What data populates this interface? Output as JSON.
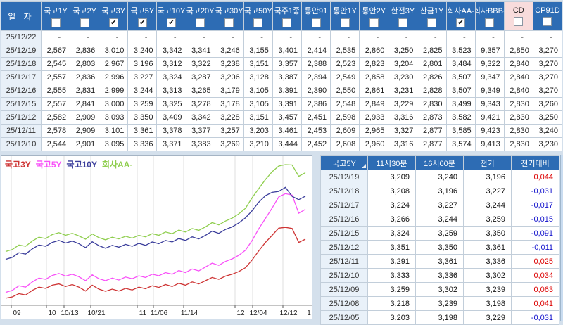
{
  "colors": {
    "header_bg": "#2D6CB4",
    "cd_highlight_bg": "#F8DCDC",
    "up": "#DC0000",
    "down": "#1414CC",
    "date_cell_bg": "#E8F0F8"
  },
  "top_table": {
    "date_header": "일  자",
    "check_glyph": "✔",
    "columns": [
      {
        "label": "국고1Y",
        "checked": false,
        "highlight": false
      },
      {
        "label": "국고2Y",
        "checked": false,
        "highlight": false
      },
      {
        "label": "국고3Y",
        "checked": true,
        "highlight": false
      },
      {
        "label": "국고5Y",
        "checked": true,
        "highlight": false
      },
      {
        "label": "국고10Y",
        "checked": true,
        "highlight": false
      },
      {
        "label": "국고20Y",
        "checked": false,
        "highlight": false
      },
      {
        "label": "국고30Y",
        "checked": false,
        "highlight": false
      },
      {
        "label": "국고50Y",
        "checked": false,
        "highlight": false
      },
      {
        "label": "국주1종",
        "checked": false,
        "highlight": false
      },
      {
        "label": "통안91",
        "checked": false,
        "highlight": false
      },
      {
        "label": "통안1Y",
        "checked": false,
        "highlight": false
      },
      {
        "label": "통안2Y",
        "checked": false,
        "highlight": false
      },
      {
        "label": "한전3Y",
        "checked": false,
        "highlight": false
      },
      {
        "label": "산금1Y",
        "checked": false,
        "highlight": false
      },
      {
        "label": "회사AA-",
        "checked": true,
        "highlight": false
      },
      {
        "label": "회사BBB-",
        "checked": false,
        "highlight": false
      },
      {
        "label": "CD",
        "checked": false,
        "highlight": true
      },
      {
        "label": "CP91D",
        "checked": false,
        "highlight": false
      }
    ],
    "rows": [
      {
        "date": "25/12/22",
        "values": [
          "-",
          "-",
          "-",
          "-",
          "-",
          "-",
          "-",
          "-",
          "-",
          "-",
          "-",
          "-",
          "-",
          "-",
          "-",
          "-",
          "-",
          "-"
        ]
      },
      {
        "date": "25/12/19",
        "values": [
          "2,567",
          "2,836",
          "3,010",
          "3,240",
          "3,342",
          "3,341",
          "3,246",
          "3,155",
          "3,401",
          "2,414",
          "2,535",
          "2,860",
          "3,250",
          "2,825",
          "3,523",
          "9,357",
          "2,850",
          "3,270"
        ]
      },
      {
        "date": "25/12/18",
        "values": [
          "2,545",
          "2,803",
          "2,967",
          "3,196",
          "3,312",
          "3,322",
          "3,238",
          "3,151",
          "3,357",
          "2,388",
          "2,523",
          "2,823",
          "3,204",
          "2,801",
          "3,484",
          "9,322",
          "2,840",
          "3,270"
        ]
      },
      {
        "date": "25/12/17",
        "values": [
          "2,557",
          "2,836",
          "2,996",
          "3,227",
          "3,324",
          "3,287",
          "3,206",
          "3,128",
          "3,387",
          "2,394",
          "2,549",
          "2,858",
          "3,230",
          "2,826",
          "3,507",
          "9,347",
          "2,840",
          "3,270"
        ]
      },
      {
        "date": "25/12/16",
        "values": [
          "2,555",
          "2,831",
          "2,999",
          "3,244",
          "3,313",
          "3,265",
          "3,179",
          "3,105",
          "3,391",
          "2,390",
          "2,550",
          "2,861",
          "3,231",
          "2,828",
          "3,507",
          "9,349",
          "2,840",
          "3,270"
        ]
      },
      {
        "date": "25/12/15",
        "values": [
          "2,557",
          "2,841",
          "3,000",
          "3,259",
          "3,325",
          "3,278",
          "3,178",
          "3,105",
          "3,391",
          "2,386",
          "2,548",
          "2,849",
          "3,229",
          "2,830",
          "3,499",
          "9,343",
          "2,830",
          "3,260"
        ]
      },
      {
        "date": "25/12/12",
        "values": [
          "2,582",
          "2,909",
          "3,093",
          "3,350",
          "3,409",
          "3,342",
          "3,228",
          "3,151",
          "3,457",
          "2,451",
          "2,598",
          "2,933",
          "3,316",
          "2,873",
          "3,582",
          "9,421",
          "2,830",
          "3,250"
        ]
      },
      {
        "date": "25/12/11",
        "values": [
          "2,578",
          "2,909",
          "3,101",
          "3,361",
          "3,378",
          "3,377",
          "3,257",
          "3,203",
          "3,461",
          "2,453",
          "2,609",
          "2,965",
          "3,327",
          "2,877",
          "3,585",
          "9,423",
          "2,830",
          "3,240"
        ]
      },
      {
        "date": "25/12/10",
        "values": [
          "2,544",
          "2,901",
          "3,095",
          "3,336",
          "3,371",
          "3,383",
          "3,269",
          "3,210",
          "3,444",
          "2,452",
          "2,608",
          "2,960",
          "3,316",
          "2,877",
          "3,574",
          "9,413",
          "2,830",
          "3,230"
        ]
      }
    ]
  },
  "quote_table": {
    "title": "국고5Y",
    "columns": [
      "11시30분",
      "16시00분",
      "전기",
      "전기대비"
    ],
    "rows": [
      {
        "date": "25/12/19",
        "v1": "3,209",
        "v2": "3,240",
        "v3": "3,196",
        "diff": "0,044",
        "dir": "up"
      },
      {
        "date": "25/12/18",
        "v1": "3,208",
        "v2": "3,196",
        "v3": "3,227",
        "diff": "-0,031",
        "dir": "down"
      },
      {
        "date": "25/12/17",
        "v1": "3,224",
        "v2": "3,227",
        "v3": "3,244",
        "diff": "-0,017",
        "dir": "down"
      },
      {
        "date": "25/12/16",
        "v1": "3,266",
        "v2": "3,244",
        "v3": "3,259",
        "diff": "-0,015",
        "dir": "down"
      },
      {
        "date": "25/12/15",
        "v1": "3,324",
        "v2": "3,259",
        "v3": "3,350",
        "diff": "-0,091",
        "dir": "down"
      },
      {
        "date": "25/12/12",
        "v1": "3,351",
        "v2": "3,350",
        "v3": "3,361",
        "diff": "-0,011",
        "dir": "down"
      },
      {
        "date": "25/12/11",
        "v1": "3,291",
        "v2": "3,361",
        "v3": "3,336",
        "diff": "0,025",
        "dir": "up"
      },
      {
        "date": "25/12/10",
        "v1": "3,333",
        "v2": "3,336",
        "v3": "3,302",
        "diff": "0,034",
        "dir": "up"
      },
      {
        "date": "25/12/09",
        "v1": "3,259",
        "v2": "3,302",
        "v3": "3,239",
        "diff": "0,063",
        "dir": "up"
      },
      {
        "date": "25/12/08",
        "v1": "3,218",
        "v2": "3,239",
        "v3": "3,198",
        "diff": "0,041",
        "dir": "up"
      },
      {
        "date": "25/12/05",
        "v1": "3,203",
        "v2": "3,198",
        "v3": "3,229",
        "diff": "-0,031",
        "dir": "down"
      }
    ]
  },
  "chart_data": {
    "type": "line",
    "title": "",
    "xlabel": "",
    "ylabel": "",
    "grid": "vertical",
    "legend_position": "top-left-inside",
    "ylim": [
      2.5,
      3.65
    ],
    "x_ticks": [
      {
        "label": "09",
        "px": 14
      },
      {
        "label": "10",
        "px": 64
      },
      {
        "label": "10/13",
        "px": 89
      },
      {
        "label": "10/21",
        "px": 127
      },
      {
        "label": "11",
        "px": 193
      },
      {
        "label": "11/06",
        "px": 216
      },
      {
        "label": "11/14",
        "px": 259
      },
      {
        "label": "12",
        "px": 332
      },
      {
        "label": "12/04",
        "px": 357
      },
      {
        "label": "12/12",
        "px": 400
      },
      {
        "label": "1",
        "px": 446
      }
    ],
    "x_range_dates": [
      "25/09/08",
      "25/12/19"
    ],
    "series": [
      {
        "name": "국고3Y",
        "color": "#CE3434",
        "values": [
          2.555,
          2.565,
          2.59,
          2.58,
          2.615,
          2.64,
          2.63,
          2.655,
          2.665,
          2.645,
          2.66,
          2.64,
          2.61,
          2.655,
          2.625,
          2.608,
          2.625,
          2.61,
          2.63,
          2.618,
          2.64,
          2.628,
          2.65,
          2.638,
          2.66,
          2.645,
          2.67,
          2.655,
          2.68,
          2.665,
          2.69,
          2.715,
          2.7,
          2.725,
          2.74,
          2.76,
          2.79,
          2.85,
          2.92,
          2.985,
          3.04,
          3.095,
          3.101,
          3.093,
          2.985,
          3.01
        ]
      },
      {
        "name": "국고5Y",
        "color": "#F851F8",
        "values": [
          2.6,
          2.615,
          2.65,
          2.64,
          2.68,
          2.71,
          2.7,
          2.73,
          2.745,
          2.725,
          2.74,
          2.72,
          2.69,
          2.735,
          2.705,
          2.69,
          2.71,
          2.695,
          2.718,
          2.705,
          2.728,
          2.715,
          2.74,
          2.728,
          2.752,
          2.74,
          2.768,
          2.752,
          2.78,
          2.765,
          2.795,
          2.825,
          2.808,
          2.838,
          2.858,
          2.885,
          2.925,
          3.0,
          3.09,
          3.17,
          3.25,
          3.336,
          3.361,
          3.35,
          3.21,
          3.24
        ]
      },
      {
        "name": "국고10Y",
        "color": "#3A3D9B",
        "values": [
          2.855,
          2.87,
          2.905,
          2.895,
          2.935,
          2.965,
          2.955,
          2.985,
          3.0,
          2.98,
          2.995,
          2.975,
          2.945,
          2.99,
          2.96,
          2.94,
          2.962,
          2.948,
          2.97,
          2.955,
          2.978,
          2.962,
          2.988,
          2.975,
          3.0,
          2.988,
          3.015,
          3.0,
          3.028,
          3.012,
          3.04,
          3.072,
          3.055,
          3.085,
          3.105,
          3.135,
          3.175,
          3.23,
          3.295,
          3.345,
          3.371,
          3.378,
          3.409,
          3.34,
          3.315,
          3.342
        ]
      },
      {
        "name": "회사AA-",
        "color": "#8FCE4E",
        "values": [
          2.915,
          2.93,
          2.965,
          2.955,
          2.995,
          3.025,
          3.015,
          3.045,
          3.06,
          3.04,
          3.055,
          3.035,
          3.01,
          3.05,
          3.022,
          3.005,
          3.025,
          3.012,
          3.032,
          3.018,
          3.04,
          3.028,
          3.052,
          3.04,
          3.065,
          3.052,
          3.08,
          3.065,
          3.092,
          3.078,
          3.105,
          3.138,
          3.12,
          3.15,
          3.172,
          3.205,
          3.248,
          3.33,
          3.4,
          3.47,
          3.53,
          3.574,
          3.585,
          3.582,
          3.495,
          3.523
        ]
      }
    ]
  }
}
